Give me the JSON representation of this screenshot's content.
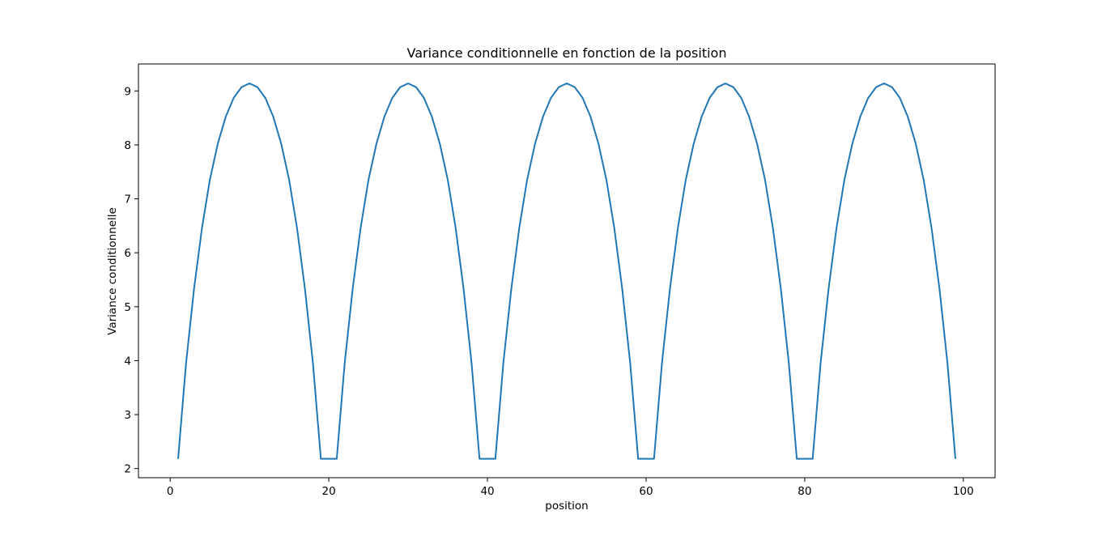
{
  "chart_data": {
    "type": "line",
    "title": "Variance conditionnelle en fonction de la position",
    "xlabel": "position",
    "ylabel": "Variance conditionnelle",
    "xlim": [
      -4,
      104
    ],
    "ylim": [
      1.83,
      9.5
    ],
    "xticks": [
      0,
      20,
      40,
      60,
      80,
      100
    ],
    "yticks": [
      2,
      3,
      4,
      5,
      6,
      7,
      8,
      9
    ],
    "grid": false,
    "line_color": "#1f77b4",
    "series": [
      {
        "x": [
          1,
          2,
          3,
          4,
          5,
          6,
          7,
          8,
          9,
          10,
          11,
          12,
          13,
          14,
          15,
          16,
          17,
          18,
          19,
          20,
          21,
          22,
          23,
          24,
          25,
          26,
          27,
          28,
          29,
          30,
          31,
          32,
          33,
          34,
          35,
          36,
          37,
          38,
          39,
          40,
          41,
          42,
          43,
          44,
          45,
          46,
          47,
          48,
          49,
          50,
          51,
          52,
          53,
          54,
          55,
          56,
          57,
          58,
          59,
          60,
          61,
          62,
          63,
          64,
          65,
          66,
          67,
          68,
          69,
          70,
          71,
          72,
          73,
          74,
          75,
          76,
          77,
          78,
          79,
          80,
          81,
          82,
          83,
          84,
          85,
          86,
          87,
          88,
          89,
          90,
          91,
          92,
          93,
          94,
          95,
          96,
          97,
          98,
          99
        ],
        "y": [
          2.18,
          3.95,
          5.32,
          6.45,
          7.35,
          8.02,
          8.52,
          8.87,
          9.07,
          9.14,
          9.07,
          8.87,
          8.52,
          8.02,
          7.35,
          6.45,
          5.32,
          3.95,
          2.18,
          2.18,
          2.18,
          3.95,
          5.32,
          6.45,
          7.35,
          8.02,
          8.52,
          8.87,
          9.07,
          9.14,
          9.07,
          8.87,
          8.52,
          8.02,
          7.35,
          6.45,
          5.32,
          3.95,
          2.18,
          2.18,
          2.18,
          3.95,
          5.32,
          6.45,
          7.35,
          8.02,
          8.52,
          8.87,
          9.07,
          9.14,
          9.07,
          8.87,
          8.52,
          8.02,
          7.35,
          6.45,
          5.32,
          3.95,
          2.18,
          2.18,
          2.18,
          3.95,
          5.32,
          6.45,
          7.35,
          8.02,
          8.52,
          8.87,
          9.07,
          9.14,
          9.07,
          8.87,
          8.52,
          8.02,
          7.35,
          6.45,
          5.32,
          3.95,
          2.18,
          2.18,
          2.18,
          3.95,
          5.32,
          6.45,
          7.35,
          8.02,
          8.52,
          8.87,
          9.07,
          9.14,
          9.07,
          8.87,
          8.52,
          8.02,
          7.35,
          6.45,
          5.32,
          3.95,
          2.18
        ]
      }
    ]
  }
}
